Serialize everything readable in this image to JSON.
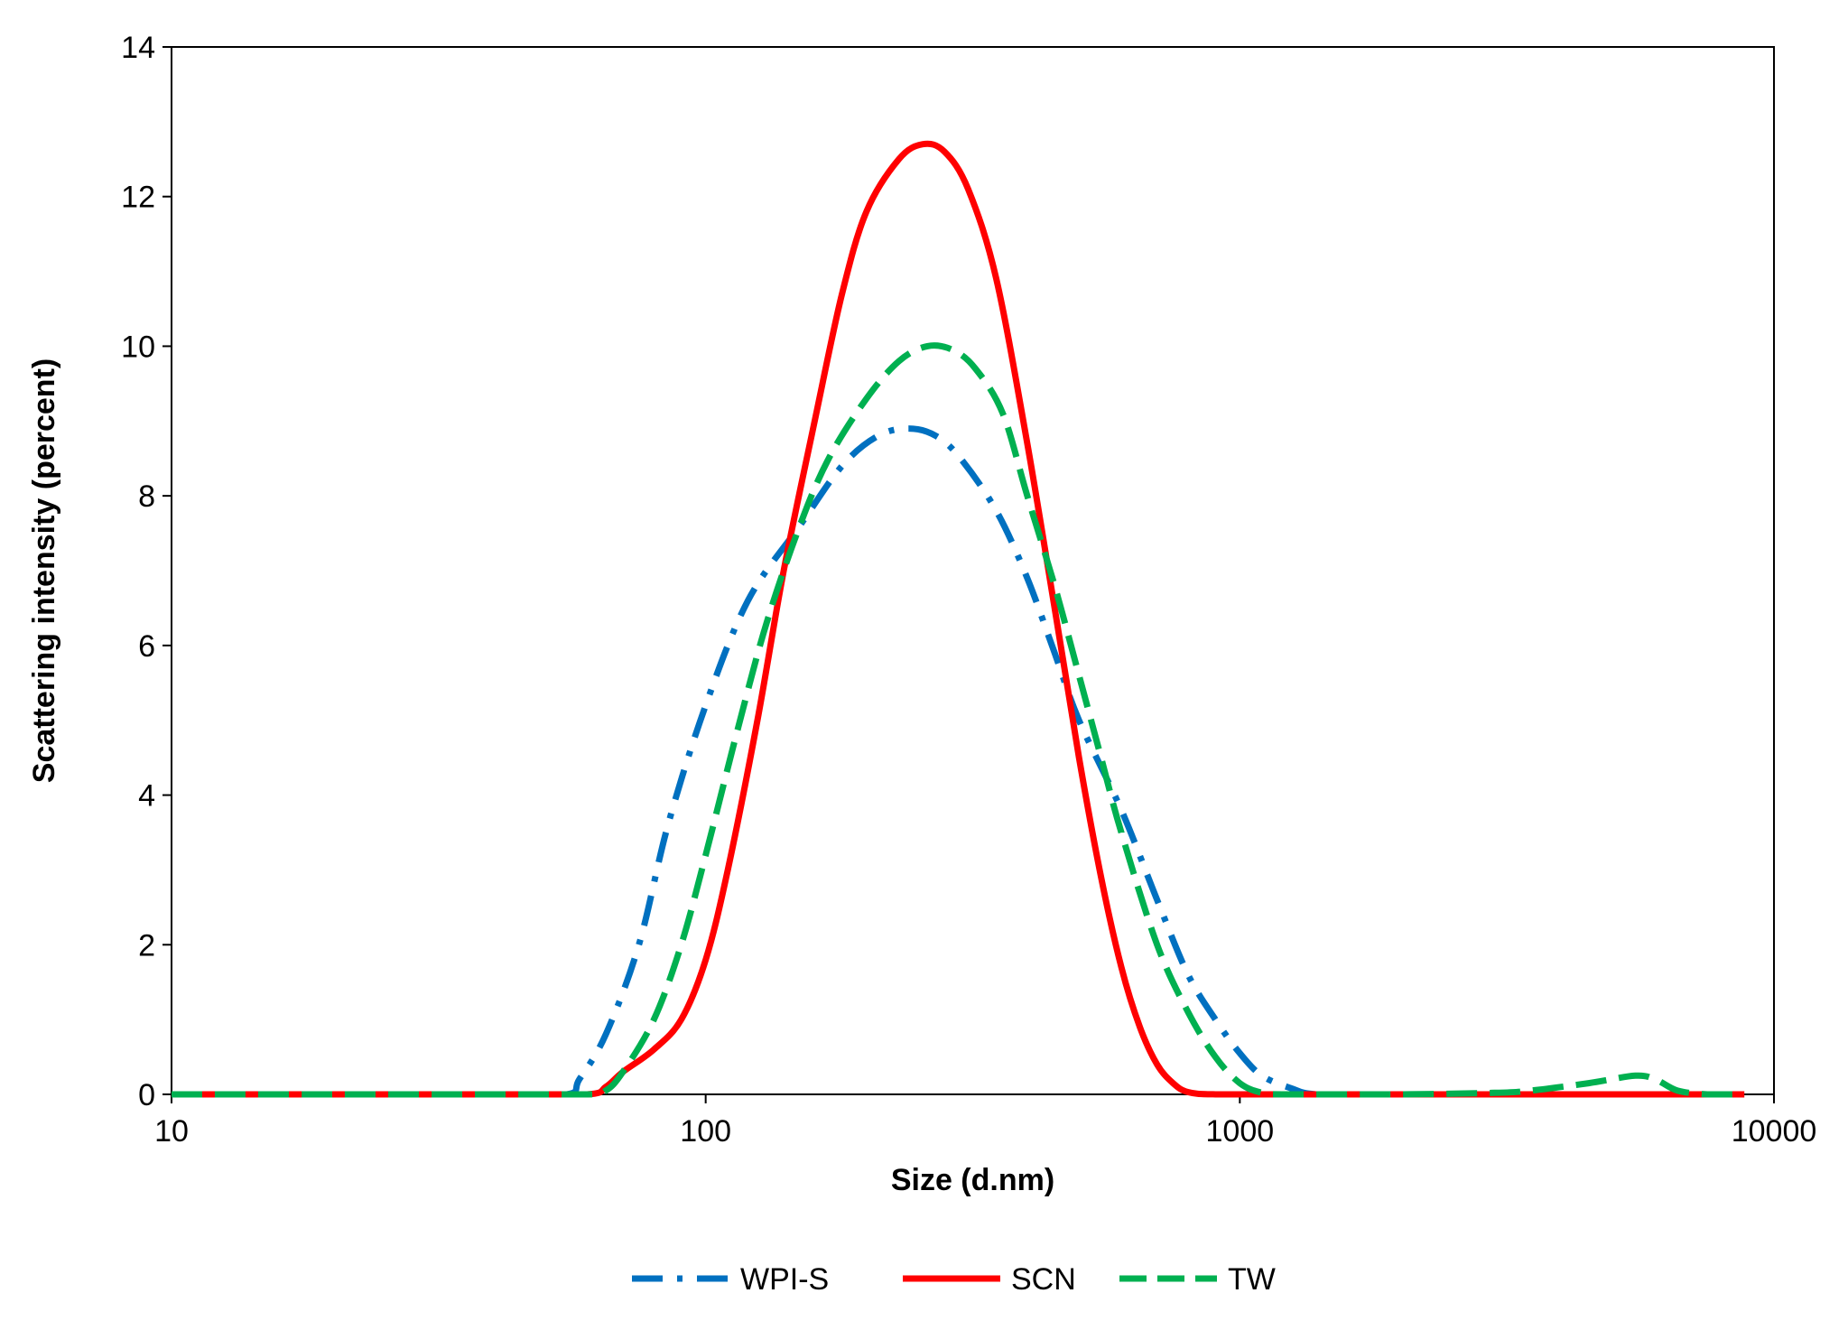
{
  "chart_data": {
    "type": "line",
    "title": "",
    "xlabel": "Size (d.nm)",
    "ylabel": "Scattering intensity (percent)",
    "xscale": "log",
    "xlim": [
      10,
      10000
    ],
    "ylim": [
      0,
      14
    ],
    "xticks": [
      10,
      100,
      1000,
      10000
    ],
    "xtick_labels": [
      "10",
      "100",
      "1000",
      "10000"
    ],
    "yticks": [
      0,
      2,
      4,
      6,
      8,
      10,
      12,
      14
    ],
    "ytick_labels": [
      "0",
      "2",
      "4",
      "6",
      "8",
      "10",
      "12",
      "14"
    ],
    "grid": false,
    "legend_position": "bottom",
    "series": [
      {
        "name": "WPI-S",
        "color": "#0070C0",
        "style": "dash-dot",
        "points": [
          [
            10,
            0
          ],
          [
            20,
            0
          ],
          [
            40,
            0
          ],
          [
            55,
            0
          ],
          [
            58,
            0.2
          ],
          [
            65,
            0.8
          ],
          [
            75,
            2.0
          ],
          [
            85,
            3.6
          ],
          [
            100,
            5.2
          ],
          [
            120,
            6.6
          ],
          [
            150,
            7.6
          ],
          [
            180,
            8.4
          ],
          [
            210,
            8.8
          ],
          [
            240,
            8.9
          ],
          [
            270,
            8.8
          ],
          [
            300,
            8.5
          ],
          [
            350,
            7.8
          ],
          [
            400,
            6.9
          ],
          [
            450,
            5.9
          ],
          [
            500,
            5.0
          ],
          [
            600,
            3.8
          ],
          [
            700,
            2.6
          ],
          [
            800,
            1.6
          ],
          [
            900,
            1.0
          ],
          [
            1000,
            0.55
          ],
          [
            1100,
            0.25
          ],
          [
            1250,
            0.08
          ],
          [
            1400,
            0
          ],
          [
            2000,
            0
          ],
          [
            4000,
            0
          ],
          [
            7000,
            0
          ],
          [
            8500,
            0
          ]
        ]
      },
      {
        "name": "SCN",
        "color": "#FF0000",
        "style": "solid",
        "points": [
          [
            10,
            0
          ],
          [
            20,
            0
          ],
          [
            40,
            0
          ],
          [
            60,
            0
          ],
          [
            65,
            0.1
          ],
          [
            70,
            0.3
          ],
          [
            80,
            0.6
          ],
          [
            90,
            1.0
          ],
          [
            100,
            1.8
          ],
          [
            110,
            3.0
          ],
          [
            125,
            5.0
          ],
          [
            140,
            7.0
          ],
          [
            160,
            9.0
          ],
          [
            180,
            10.7
          ],
          [
            200,
            11.8
          ],
          [
            230,
            12.5
          ],
          [
            255,
            12.7
          ],
          [
            280,
            12.6
          ],
          [
            310,
            12.1
          ],
          [
            350,
            10.9
          ],
          [
            400,
            8.7
          ],
          [
            450,
            6.5
          ],
          [
            500,
            4.5
          ],
          [
            550,
            2.9
          ],
          [
            600,
            1.7
          ],
          [
            650,
            0.9
          ],
          [
            700,
            0.4
          ],
          [
            750,
            0.15
          ],
          [
            800,
            0.03
          ],
          [
            900,
            0
          ],
          [
            1200,
            0
          ],
          [
            3000,
            0
          ],
          [
            6000,
            0
          ],
          [
            8800,
            0
          ]
        ]
      },
      {
        "name": "TW",
        "color": "#00B050",
        "style": "dashed",
        "points": [
          [
            10,
            0
          ],
          [
            20,
            0
          ],
          [
            40,
            0
          ],
          [
            60,
            0
          ],
          [
            65,
            0.05
          ],
          [
            70,
            0.3
          ],
          [
            80,
            1.0
          ],
          [
            90,
            2.0
          ],
          [
            100,
            3.2
          ],
          [
            115,
            4.9
          ],
          [
            130,
            6.3
          ],
          [
            150,
            7.6
          ],
          [
            170,
            8.5
          ],
          [
            200,
            9.3
          ],
          [
            230,
            9.8
          ],
          [
            260,
            10.0
          ],
          [
            290,
            9.95
          ],
          [
            320,
            9.7
          ],
          [
            360,
            9.1
          ],
          [
            400,
            8.0
          ],
          [
            450,
            6.8
          ],
          [
            500,
            5.6
          ],
          [
            550,
            4.5
          ],
          [
            600,
            3.5
          ],
          [
            700,
            2.0
          ],
          [
            800,
            1.1
          ],
          [
            900,
            0.5
          ],
          [
            1000,
            0.15
          ],
          [
            1100,
            0.02
          ],
          [
            1200,
            0
          ],
          [
            2000,
            0
          ],
          [
            3000,
            0.02
          ],
          [
            3500,
            0.05
          ],
          [
            4500,
            0.15
          ],
          [
            5500,
            0.25
          ],
          [
            6000,
            0.2
          ],
          [
            6600,
            0.05
          ],
          [
            7500,
            0
          ],
          [
            8500,
            0
          ]
        ]
      }
    ]
  }
}
